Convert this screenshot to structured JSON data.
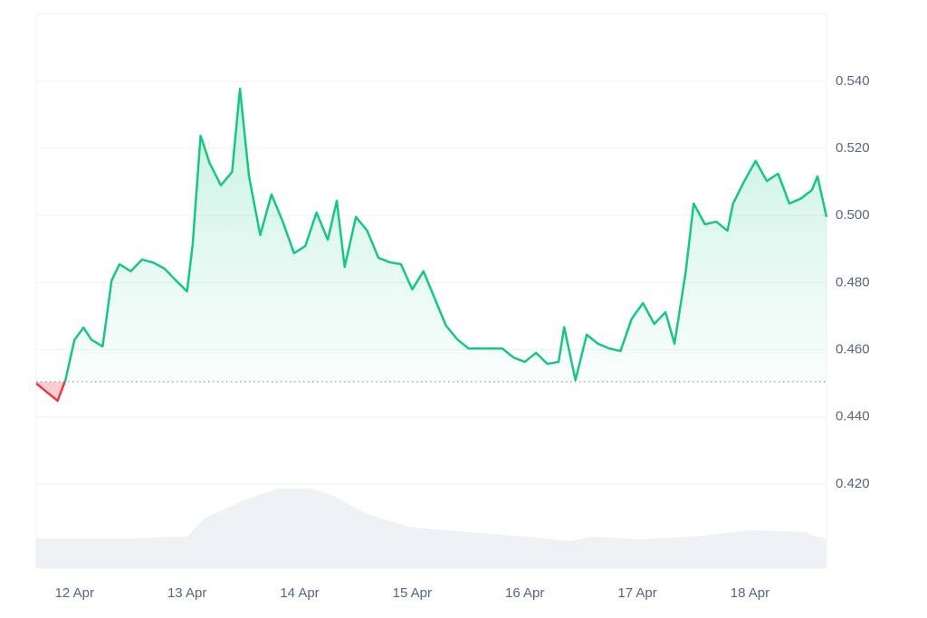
{
  "chart_data": {
    "type": "line",
    "x": [
      -0.34,
      -0.25,
      -0.15,
      -0.08,
      0,
      0.08,
      0.15,
      0.25,
      0.33,
      0.4,
      0.5,
      0.6,
      0.7,
      0.8,
      0.9,
      1.0,
      1.05,
      1.12,
      1.2,
      1.3,
      1.4,
      1.47,
      1.55,
      1.65,
      1.75,
      1.85,
      1.95,
      2.05,
      2.15,
      2.25,
      2.33,
      2.4,
      2.5,
      2.6,
      2.7,
      2.8,
      2.9,
      3.0,
      3.1,
      3.2,
      3.3,
      3.4,
      3.5,
      3.6,
      3.7,
      3.8,
      3.9,
      4.0,
      4.1,
      4.2,
      4.3,
      4.35,
      4.45,
      4.55,
      4.65,
      4.75,
      4.85,
      4.95,
      5.05,
      5.15,
      5.25,
      5.33,
      5.43,
      5.5,
      5.6,
      5.7,
      5.8,
      5.85,
      5.95,
      6.05,
      6.15,
      6.25,
      6.35,
      6.45,
      6.55,
      6.6,
      6.68
    ],
    "values": [
      0.45,
      0.4475,
      0.4448,
      0.451,
      0.463,
      0.4666,
      0.463,
      0.461,
      0.4807,
      0.4855,
      0.4834,
      0.4869,
      0.486,
      0.4842,
      0.4807,
      0.4774,
      0.4915,
      0.5238,
      0.5157,
      0.509,
      0.513,
      0.5378,
      0.5117,
      0.4942,
      0.5063,
      0.4982,
      0.4888,
      0.4909,
      0.5009,
      0.4928,
      0.5044,
      0.4847,
      0.4996,
      0.4955,
      0.4874,
      0.4861,
      0.4855,
      0.478,
      0.4834,
      0.4753,
      0.4672,
      0.4631,
      0.4604,
      0.4604,
      0.4604,
      0.4604,
      0.4577,
      0.4564,
      0.4591,
      0.4558,
      0.4564,
      0.4667,
      0.451,
      0.4645,
      0.4618,
      0.4604,
      0.4596,
      0.4693,
      0.4739,
      0.4677,
      0.4712,
      0.4618,
      0.4834,
      0.5036,
      0.4974,
      0.4982,
      0.4955,
      0.5036,
      0.5103,
      0.5163,
      0.5103,
      0.5125,
      0.5036,
      0.505,
      0.5076,
      0.5117,
      0.4996
    ],
    "up_color": "#16c784",
    "down_color": "#ea3943",
    "baseline": 0.4505,
    "xlim": [
      -0.34,
      6.68
    ],
    "xticks": [
      {
        "value": 0,
        "label": "12 Apr"
      },
      {
        "value": 1,
        "label": "13 Apr"
      },
      {
        "value": 2,
        "label": "14 Apr"
      },
      {
        "value": 3,
        "label": "15 Apr"
      },
      {
        "value": 4,
        "label": "16 Apr"
      },
      {
        "value": 5,
        "label": "17 Apr"
      },
      {
        "value": 6,
        "label": "18 Apr"
      }
    ],
    "ylim": [
      0.3949,
      0.5602
    ],
    "yticks": [
      {
        "value": 0.42,
        "label": "0.420"
      },
      {
        "value": 0.44,
        "label": "0.440"
      },
      {
        "value": 0.46,
        "label": "0.460"
      },
      {
        "value": 0.48,
        "label": "0.480"
      },
      {
        "value": 0.5,
        "label": "0.500"
      },
      {
        "value": 0.52,
        "label": "0.520"
      },
      {
        "value": 0.54,
        "label": "0.540"
      }
    ],
    "grid": true,
    "volume": {
      "x": [
        -0.34,
        0.5,
        1.0,
        1.15,
        1.5,
        1.8,
        2.1,
        2.3,
        2.6,
        3.0,
        3.5,
        4.0,
        4.4,
        4.6,
        5.0,
        5.5,
        6.0,
        6.5,
        6.58,
        6.68
      ],
      "values": [
        33,
        33,
        35,
        55,
        75,
        88,
        88,
        80,
        60,
        45,
        40,
        35,
        30,
        35,
        32,
        35,
        42,
        40,
        35,
        33
      ],
      "color": "#eff2f5",
      "lim": [
        0,
        100
      ]
    }
  }
}
